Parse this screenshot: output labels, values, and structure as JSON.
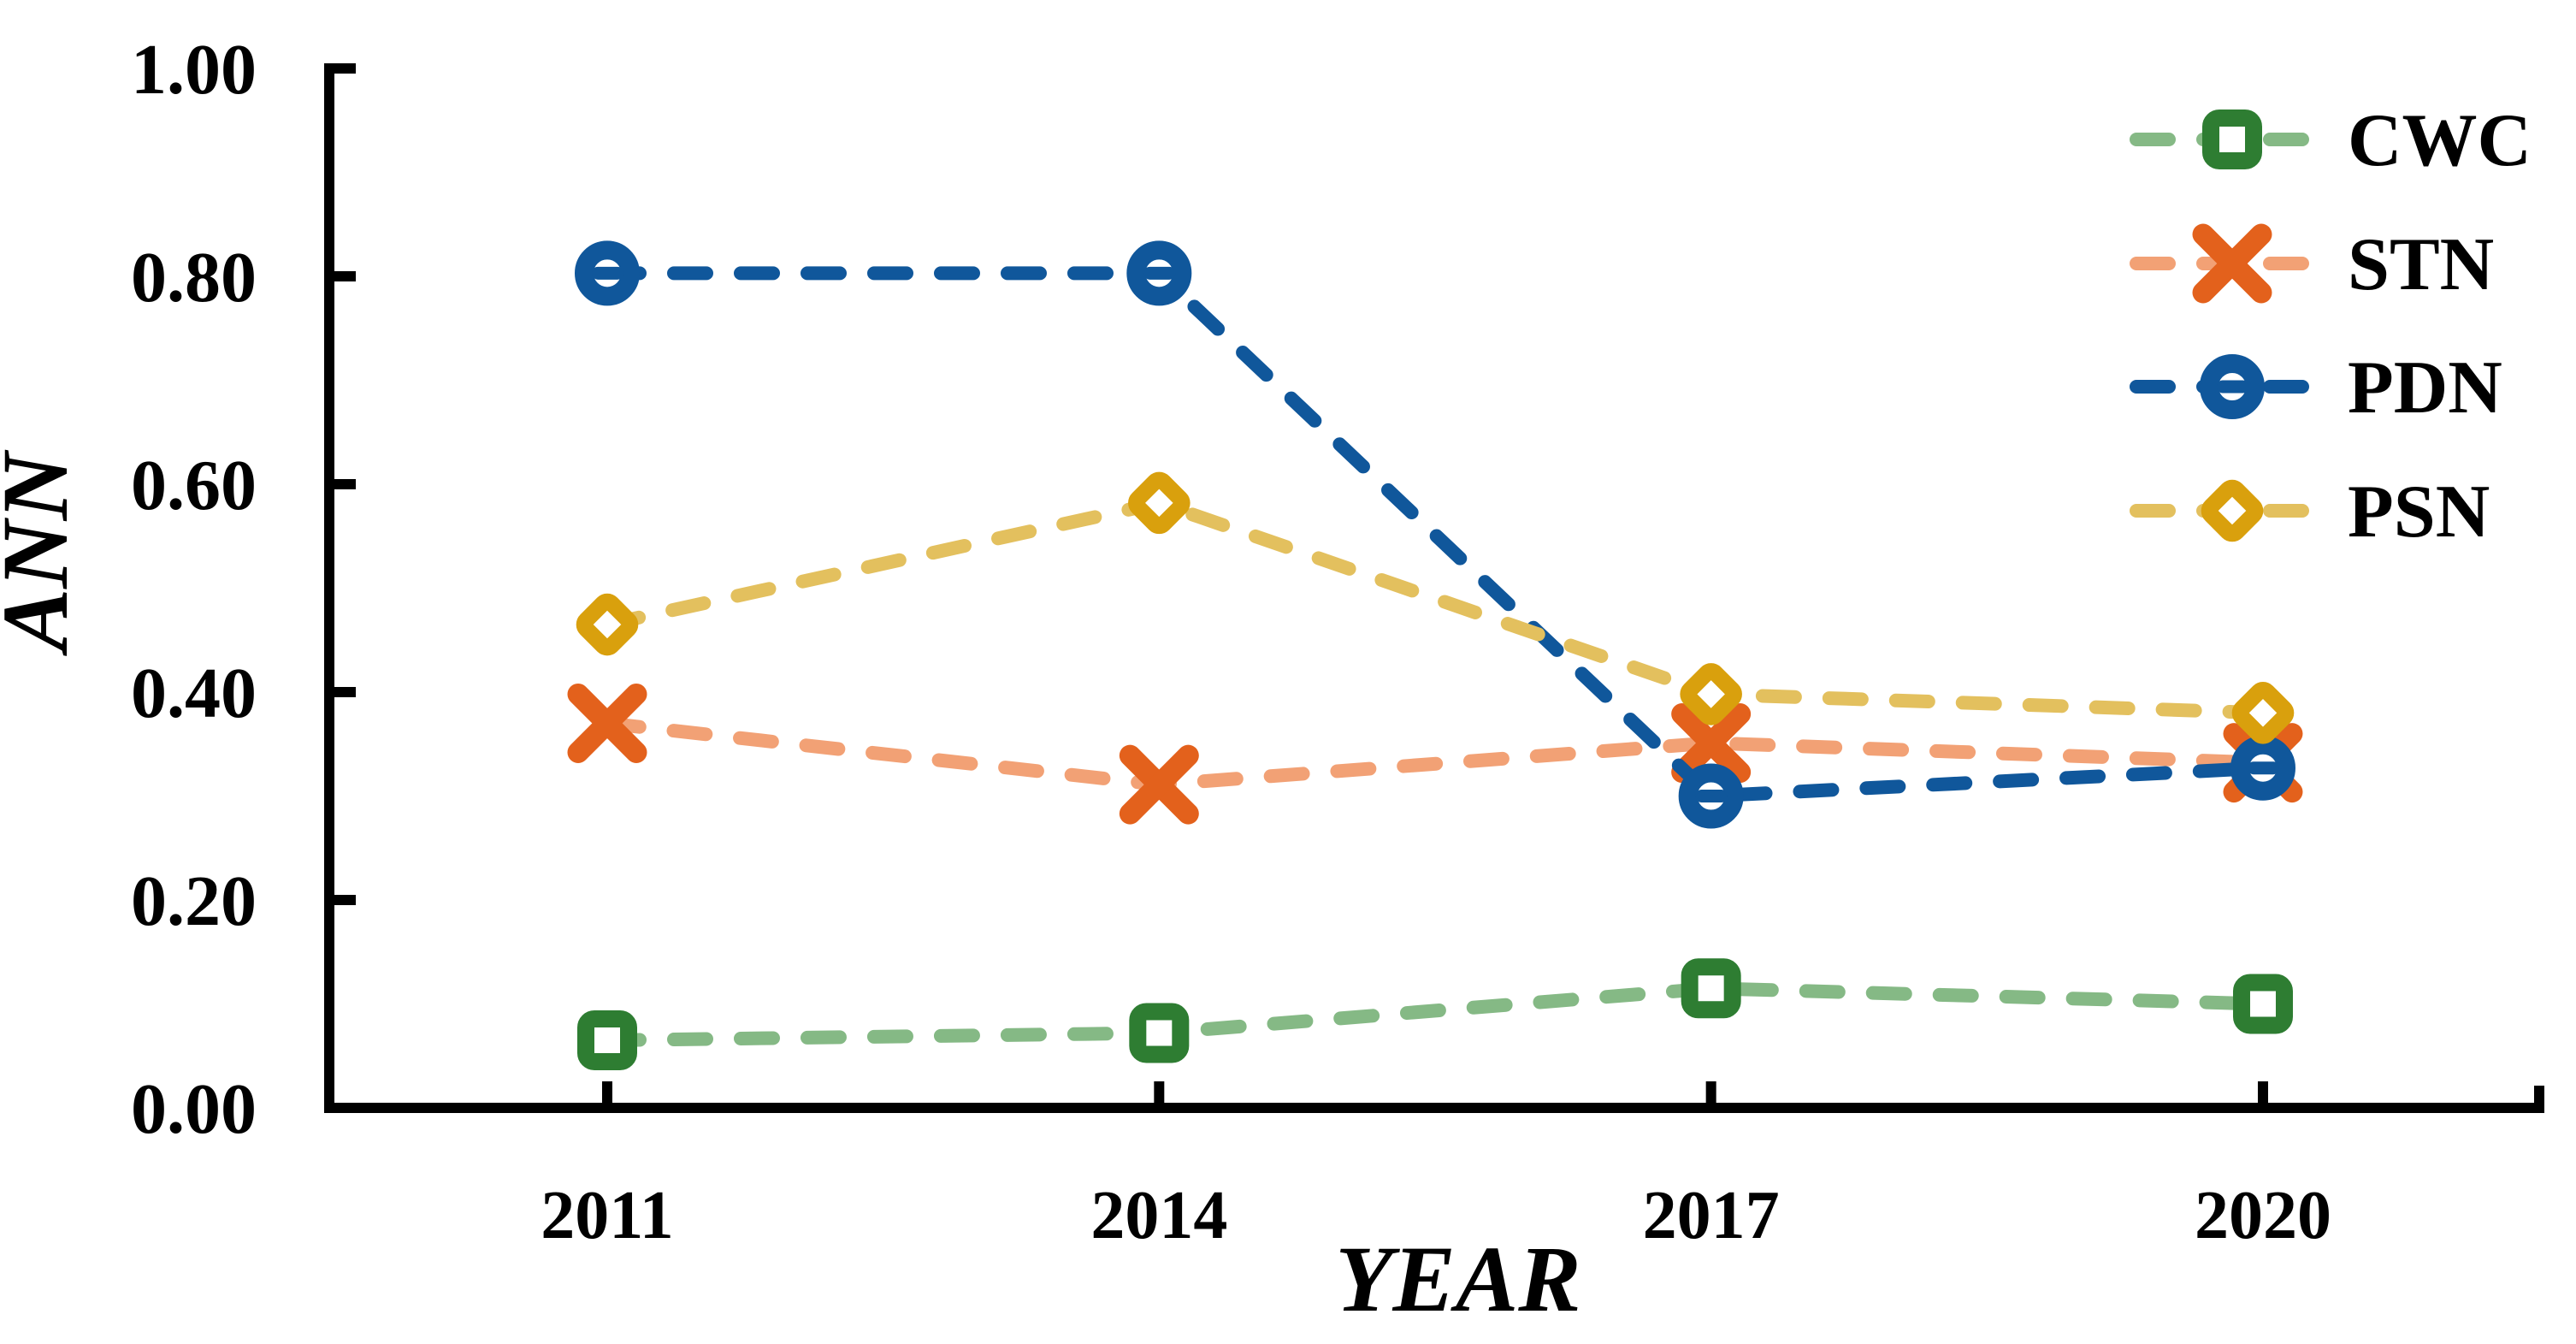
{
  "chart_data": {
    "type": "line",
    "title": "",
    "xlabel": "YEAR",
    "ylabel": "ANN",
    "categories": [
      "2011",
      "2014",
      "2017",
      "2020"
    ],
    "ylim": [
      0.0,
      1.0
    ],
    "ytick_step": 0.2,
    "ytick_labels": [
      "0.00",
      "0.20",
      "0.40",
      "0.60",
      "0.80",
      "1.00"
    ],
    "grid": false,
    "legend_position": "top-right",
    "line_style": "dashed",
    "axis_color": "#000000",
    "background_color": "#ffffff",
    "series": [
      {
        "name": "CWC",
        "marker": "square",
        "marker_color": "#2E7D32",
        "line_color": "#85B985",
        "values": [
          0.065,
          0.072,
          0.115,
          0.1
        ]
      },
      {
        "name": "STN",
        "marker": "x",
        "marker_color": "#E3611C",
        "line_color": "#F2A175",
        "values": [
          0.37,
          0.311,
          0.351,
          0.332
        ]
      },
      {
        "name": "PDN",
        "marker": "circle-dash",
        "marker_color": "#10579B",
        "line_color": "#10579B",
        "values": [
          0.803,
          0.803,
          0.3,
          0.327
        ]
      },
      {
        "name": "PSN",
        "marker": "diamond",
        "marker_color": "#D9A00D",
        "line_color": "#E3C05E",
        "values": [
          0.465,
          0.582,
          0.398,
          0.38
        ]
      }
    ]
  }
}
